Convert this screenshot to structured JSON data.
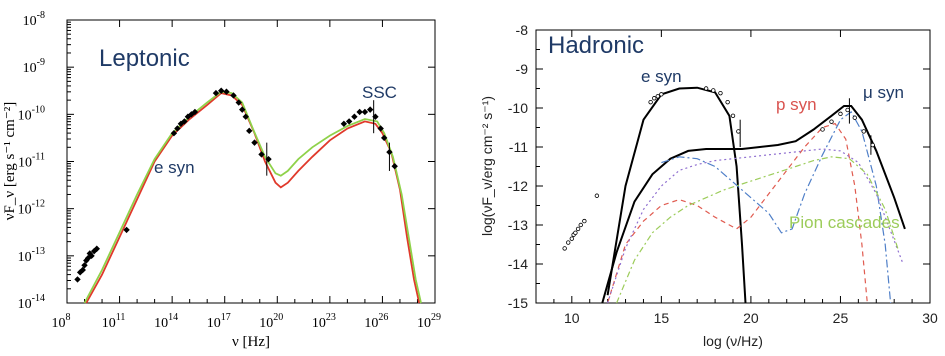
{
  "chart_data": [
    {
      "type": "scatter",
      "panel_label": "Leptonic",
      "xlabel": "ν [Hz]",
      "ylabel": "νF_ν [erg s⁻¹ cm⁻²]",
      "xlim": [
        8,
        29
      ],
      "ylim": [
        -14,
        -8
      ],
      "x_scale": "log",
      "y_scale": "log",
      "x_ticks": [
        {
          "exp": 8,
          "label": "10",
          "sup": "8"
        },
        {
          "exp": 11,
          "label": "10",
          "sup": "11"
        },
        {
          "exp": 14,
          "label": "10",
          "sup": "14"
        },
        {
          "exp": 17,
          "label": "10",
          "sup": "17"
        },
        {
          "exp": 20,
          "label": "10",
          "sup": "20"
        },
        {
          "exp": 23,
          "label": "10",
          "sup": "23"
        },
        {
          "exp": 26,
          "label": "10",
          "sup": "26"
        },
        {
          "exp": 29,
          "label": "10",
          "sup": "29"
        }
      ],
      "y_ticks": [
        {
          "exp": -14,
          "label": "10",
          "sup": "-14"
        },
        {
          "exp": -13,
          "label": "10",
          "sup": "-13"
        },
        {
          "exp": -12,
          "label": "10",
          "sup": "-12"
        },
        {
          "exp": -11,
          "label": "10",
          "sup": "-11"
        },
        {
          "exp": -10,
          "label": "10",
          "sup": "-10"
        },
        {
          "exp": -9,
          "label": "10",
          "sup": "-9"
        },
        {
          "exp": -8,
          "label": "10",
          "sup": "-8"
        }
      ],
      "annotations": [
        "e syn",
        "SSC"
      ],
      "series": [
        {
          "color": "#e0392b",
          "points": [
            [
              9.1,
              -14
            ],
            [
              10,
              -13.4
            ],
            [
              11,
              -12.6
            ],
            [
              12,
              -11.8
            ],
            [
              13,
              -11
            ],
            [
              14,
              -10.45
            ],
            [
              15,
              -10.1
            ],
            [
              16,
              -9.8
            ],
            [
              16.8,
              -9.55
            ],
            [
              17.4,
              -9.6
            ],
            [
              18,
              -9.8
            ],
            [
              18.7,
              -10.4
            ],
            [
              19.3,
              -11
            ],
            [
              19.9,
              -11.45
            ],
            [
              20.2,
              -11.55
            ],
            [
              20.6,
              -11.45
            ],
            [
              21.2,
              -11.2
            ],
            [
              22,
              -10.9
            ],
            [
              23,
              -10.55
            ],
            [
              24,
              -10.3
            ],
            [
              25,
              -10.15
            ],
            [
              25.6,
              -10.2
            ],
            [
              26,
              -10.4
            ],
            [
              26.5,
              -10.8
            ],
            [
              27,
              -11.6
            ],
            [
              27.4,
              -12.6
            ],
            [
              27.8,
              -13.5
            ],
            [
              28.1,
              -14
            ]
          ]
        },
        {
          "color": "#8fd24a",
          "points": [
            [
              9,
              -14
            ],
            [
              10,
              -13.3
            ],
            [
              11,
              -12.5
            ],
            [
              12,
              -11.7
            ],
            [
              13,
              -10.95
            ],
            [
              14,
              -10.4
            ],
            [
              15,
              -10.05
            ],
            [
              16,
              -9.75
            ],
            [
              16.8,
              -9.52
            ],
            [
              17.4,
              -9.55
            ],
            [
              18,
              -9.75
            ],
            [
              18.6,
              -10.3
            ],
            [
              19.3,
              -10.9
            ],
            [
              19.9,
              -11.25
            ],
            [
              20.2,
              -11.3
            ],
            [
              20.6,
              -11.2
            ],
            [
              21.2,
              -10.95
            ],
            [
              22,
              -10.7
            ],
            [
              23,
              -10.45
            ],
            [
              24,
              -10.25
            ],
            [
              25,
              -10.1
            ],
            [
              25.7,
              -10.15
            ],
            [
              26.1,
              -10.4
            ],
            [
              26.6,
              -10.9
            ],
            [
              27.1,
              -11.7
            ],
            [
              27.5,
              -12.6
            ],
            [
              27.9,
              -13.5
            ],
            [
              28.2,
              -14
            ]
          ]
        }
      ],
      "data_points": [
        [
          8.6,
          -13.5
        ],
        [
          8.75,
          -13.35
        ],
        [
          8.9,
          -13.3
        ],
        [
          9.0,
          -13.2
        ],
        [
          9.1,
          -13.1
        ],
        [
          9.2,
          -13.05
        ],
        [
          9.3,
          -12.95
        ],
        [
          9.4,
          -13.0
        ],
        [
          9.55,
          -12.9
        ],
        [
          9.7,
          -12.85
        ],
        [
          11.4,
          -12.45
        ],
        [
          14.1,
          -10.4
        ],
        [
          14.3,
          -10.3
        ],
        [
          14.5,
          -10.2
        ],
        [
          14.7,
          -10.15
        ],
        [
          14.9,
          -10.05
        ],
        [
          15.1,
          -10.0
        ],
        [
          15.3,
          -9.95
        ],
        [
          16.5,
          -9.55
        ],
        [
          16.8,
          -9.5
        ],
        [
          17.1,
          -9.52
        ],
        [
          17.5,
          -9.6
        ],
        [
          17.8,
          -9.75
        ],
        [
          18.0,
          -9.9
        ],
        [
          18.2,
          -10.05
        ],
        [
          18.4,
          -10.35
        ],
        [
          18.7,
          -10.6
        ],
        [
          19.1,
          -10.85
        ],
        [
          19.5,
          -10.95
        ],
        [
          23.8,
          -10.2
        ],
        [
          24.1,
          -10.15
        ],
        [
          24.4,
          -10.05
        ],
        [
          24.7,
          -9.95
        ],
        [
          25.0,
          -9.95
        ],
        [
          25.3,
          -9.9
        ],
        [
          25.6,
          -10.05
        ],
        [
          25.9,
          -10.3
        ],
        [
          26.1,
          -10.5
        ],
        [
          26.4,
          -10.8
        ],
        [
          26.7,
          -11.1
        ]
      ],
      "error_bars": [
        [
          19.4,
          -11.3,
          -10.6
        ],
        [
          25.5,
          -10.4,
          -9.7
        ],
        [
          26.4,
          -11.2,
          -10.6
        ]
      ]
    },
    {
      "type": "line",
      "panel_label": "Hadronic",
      "xlabel": "log (ν/Hz)",
      "ylabel": "log(νF_ν/erg cm⁻² s⁻¹)",
      "xlim": [
        8,
        30
      ],
      "ylim": [
        -15,
        -8
      ],
      "x_ticks": [
        "10",
        "15",
        "20",
        "25",
        "30"
      ],
      "y_ticks": [
        "-8",
        "-9",
        "-10",
        "-11",
        "-12",
        "-13",
        "-14",
        "-15"
      ],
      "annotations": [
        "e syn",
        "p syn",
        "μ syn",
        "Pion cascades"
      ],
      "series": [
        {
          "role": "e syn",
          "color": "#000000",
          "dash": "",
          "points": [
            [
              12,
              -14.8
            ],
            [
              13,
              -12
            ],
            [
              14,
              -10.3
            ],
            [
              15,
              -9.65
            ],
            [
              16,
              -9.5
            ],
            [
              17,
              -9.48
            ],
            [
              18,
              -9.6
            ],
            [
              18.8,
              -10.2
            ],
            [
              19.2,
              -11.5
            ],
            [
              19.5,
              -13.5
            ],
            [
              19.7,
              -15
            ]
          ]
        },
        {
          "role": "total",
          "color": "#000000",
          "dash": "",
          "points": [
            [
              11.7,
              -15
            ],
            [
              12.5,
              -13.7
            ],
            [
              13.5,
              -12.4
            ],
            [
              14.5,
              -11.7
            ],
            [
              15.5,
              -11.3
            ],
            [
              16.5,
              -11.1
            ],
            [
              17.5,
              -11.05
            ],
            [
              18.5,
              -11.05
            ],
            [
              19.5,
              -11.05
            ],
            [
              20.5,
              -11.0
            ],
            [
              21.5,
              -10.95
            ],
            [
              22.5,
              -10.85
            ],
            [
              23.5,
              -10.55
            ],
            [
              24.5,
              -10.2
            ],
            [
              25.2,
              -9.95
            ],
            [
              25.6,
              -9.95
            ],
            [
              26.2,
              -10.3
            ],
            [
              27,
              -11.1
            ],
            [
              28,
              -12.3
            ],
            [
              28.6,
              -13.1
            ]
          ]
        },
        {
          "role": "p syn",
          "color": "#e05b50",
          "dash": "5,4",
          "points": [
            [
              12,
              -15
            ],
            [
              13,
              -13.5
            ],
            [
              14,
              -12.9
            ],
            [
              15,
              -12.5
            ],
            [
              16,
              -12.35
            ],
            [
              17,
              -12.5
            ],
            [
              18,
              -12.8
            ],
            [
              19.2,
              -13.1
            ],
            [
              20,
              -12.8
            ],
            [
              21,
              -12.2
            ],
            [
              22,
              -11.6
            ],
            [
              23,
              -11.0
            ],
            [
              24,
              -10.5
            ],
            [
              24.7,
              -10.4
            ],
            [
              25.3,
              -10.8
            ],
            [
              25.8,
              -12
            ],
            [
              26.2,
              -13.5
            ],
            [
              26.5,
              -15
            ]
          ]
        },
        {
          "role": "μ syn",
          "color": "#4f7fc8",
          "dash": "8,3,2,3",
          "points": [
            [
              15,
              -11.4
            ],
            [
              16,
              -11.25
            ],
            [
              17,
              -11.3
            ],
            [
              18,
              -11.5
            ],
            [
              19,
              -11.9
            ],
            [
              20,
              -12.3
            ],
            [
              21,
              -12.7
            ],
            [
              21.7,
              -13.2
            ],
            [
              22.3,
              -13.1
            ],
            [
              23,
              -12.2
            ],
            [
              24,
              -11.2
            ],
            [
              25,
              -10.3
            ],
            [
              25.6,
              -10.1
            ],
            [
              26.2,
              -10.6
            ],
            [
              27,
              -12
            ],
            [
              27.5,
              -13.5
            ],
            [
              27.8,
              -15
            ]
          ]
        },
        {
          "role": "cascade",
          "color": "#8f6fd0",
          "dash": "2,3",
          "points": [
            [
              12,
              -15
            ],
            [
              13,
              -13.6
            ],
            [
              14,
              -12.6
            ],
            [
              15,
              -12.0
            ],
            [
              16,
              -11.6
            ],
            [
              17,
              -11.45
            ],
            [
              18,
              -11.35
            ],
            [
              19,
              -11.3
            ],
            [
              20,
              -11.25
            ],
            [
              21,
              -11.2
            ],
            [
              22,
              -11.15
            ],
            [
              23,
              -11.1
            ],
            [
              24,
              -11.05
            ],
            [
              25,
              -11.1
            ],
            [
              26,
              -11.4
            ],
            [
              27,
              -12.2
            ],
            [
              28,
              -13.4
            ],
            [
              28.5,
              -14
            ]
          ]
        },
        {
          "role": "Pion cascades",
          "color": "#9ccc5a",
          "dash": "6,3,2,3",
          "points": [
            [
              12.5,
              -15
            ],
            [
              13.5,
              -13.9
            ],
            [
              14.5,
              -13.2
            ],
            [
              15.5,
              -12.8
            ],
            [
              16.5,
              -12.5
            ],
            [
              17.5,
              -12.3
            ],
            [
              18.5,
              -12.1
            ],
            [
              19.5,
              -11.95
            ],
            [
              20.5,
              -11.8
            ],
            [
              21.5,
              -11.65
            ],
            [
              22.5,
              -11.5
            ],
            [
              23.5,
              -11.35
            ],
            [
              24.5,
              -11.25
            ],
            [
              25.5,
              -11.3
            ],
            [
              26.5,
              -11.7
            ],
            [
              27.5,
              -12.6
            ],
            [
              28.2,
              -13.6
            ]
          ]
        }
      ],
      "data_points": [
        [
          9.6,
          -13.6
        ],
        [
          9.8,
          -13.45
        ],
        [
          10.0,
          -13.35
        ],
        [
          10.1,
          -13.25
        ],
        [
          10.2,
          -13.2
        ],
        [
          10.35,
          -13.1
        ],
        [
          10.5,
          -13.0
        ],
        [
          10.7,
          -12.9
        ],
        [
          11.4,
          -12.25
        ],
        [
          14.4,
          -9.85
        ],
        [
          14.6,
          -9.75
        ],
        [
          14.8,
          -9.7
        ],
        [
          15.0,
          -9.65
        ],
        [
          17.5,
          -9.5
        ],
        [
          17.9,
          -9.55
        ],
        [
          18.3,
          -9.62
        ],
        [
          18.7,
          -9.85
        ],
        [
          19.0,
          -10.2
        ],
        [
          19.3,
          -10.6
        ],
        [
          24.0,
          -10.55
        ],
        [
          24.5,
          -10.35
        ],
        [
          25.0,
          -10.15
        ],
        [
          25.4,
          -10.05
        ],
        [
          25.8,
          -10.25
        ],
        [
          26.3,
          -10.6
        ],
        [
          26.8,
          -10.95
        ]
      ],
      "error_bars": [
        [
          19.4,
          -11.0,
          -10.3
        ],
        [
          25.5,
          -10.4,
          -9.75
        ],
        [
          26.7,
          -11.2,
          -10.7
        ]
      ]
    }
  ]
}
